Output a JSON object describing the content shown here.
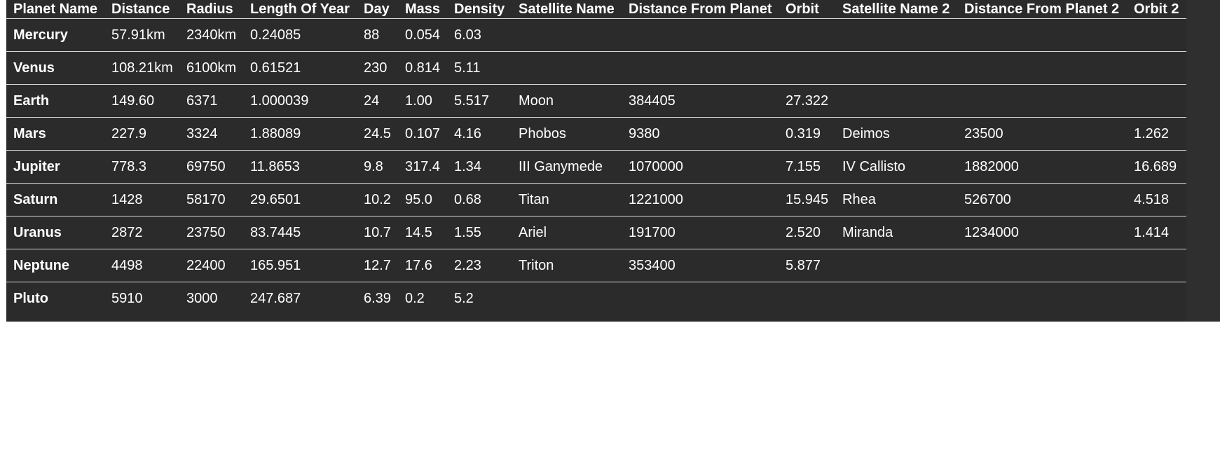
{
  "table": {
    "headers": [
      "Planet Name",
      "Distance",
      "Radius",
      "Length Of Year",
      "Day",
      "Mass",
      "Density",
      "Satellite Name",
      "Distance From Planet",
      "Orbit",
      "Satellite Name 2",
      "Distance From Planet 2",
      "Orbit 2"
    ],
    "rows": [
      [
        "Mercury",
        "57.91km",
        "2340km",
        "0.24085",
        "88",
        "0.054",
        "6.03",
        "",
        "",
        "",
        "",
        "",
        ""
      ],
      [
        "Venus",
        "108.21km",
        "6100km",
        "0.61521",
        "230",
        "0.814",
        "5.11",
        "",
        "",
        "",
        "",
        "",
        ""
      ],
      [
        "Earth",
        "149.60",
        "6371",
        "1.000039",
        "24",
        "1.00",
        "5.517",
        "Moon",
        "384405",
        "27.322",
        "",
        "",
        ""
      ],
      [
        "Mars",
        "227.9",
        "3324",
        "1.88089",
        "24.5",
        "0.107",
        "4.16",
        "Phobos",
        "9380",
        "0.319",
        "Deimos",
        "23500",
        "1.262"
      ],
      [
        "Jupiter",
        "778.3",
        "69750",
        "11.8653",
        "9.8",
        "317.4",
        "1.34",
        "III Ganymede",
        "1070000",
        "7.155",
        "IV Callisto",
        "1882000",
        "16.689"
      ],
      [
        "Saturn",
        "1428",
        "58170",
        "29.6501",
        "10.2",
        "95.0",
        "0.68",
        "Titan",
        "1221000",
        "15.945",
        "Rhea",
        "526700",
        "4.518"
      ],
      [
        "Uranus",
        "2872",
        "23750",
        "83.7445",
        "10.7",
        "14.5",
        "1.55",
        "Ariel",
        "191700",
        "2.520",
        "Miranda",
        "1234000",
        "1.414"
      ],
      [
        "Neptune",
        "4498",
        "22400",
        "165.951",
        "12.7",
        "17.6",
        "2.23",
        "Triton",
        "353400",
        "5.877",
        "",
        "",
        ""
      ],
      [
        "Pluto",
        "5910",
        "3000",
        "247.687",
        "6.39",
        "0.2",
        "5.2",
        "",
        "",
        "",
        "",
        "",
        ""
      ]
    ]
  },
  "colors": {
    "table_background": "#2b2b2b",
    "text": "#ffffff",
    "row_divider": "#d8d8d8",
    "page_background": "#ffffff"
  }
}
